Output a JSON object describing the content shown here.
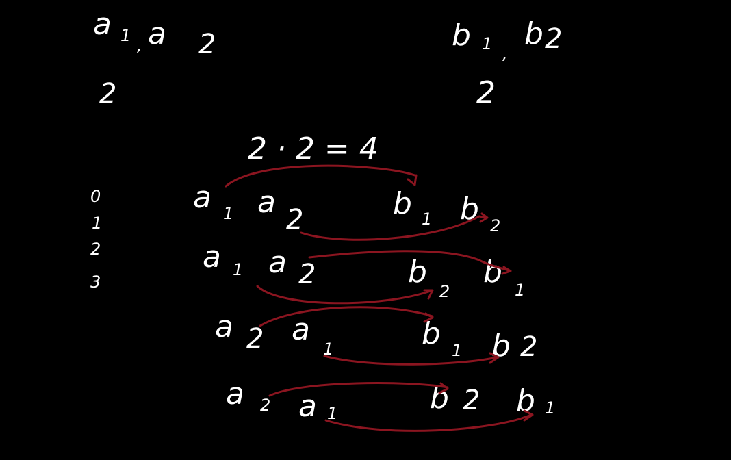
{
  "colors": {
    "background": "#000000",
    "ink": "#ffffff",
    "arrow": "#8b1520"
  },
  "top_left": {
    "a1": "a",
    "a1_sub": "1",
    "sep": ",",
    "a2": "a",
    "a2_sub": "2",
    "count": "2"
  },
  "top_right": {
    "b1": "b",
    "b1_sub": "1",
    "sep": ",",
    "b2": "b",
    "b2_sub": "2",
    "count": "2"
  },
  "equation": "2 · 2 = 4",
  "indices": [
    "0",
    "1",
    "2",
    "3"
  ],
  "rows": [
    {
      "left": [
        "a",
        "1",
        "a",
        "2"
      ],
      "right": [
        "b",
        "1",
        "b",
        "2"
      ]
    },
    {
      "left": [
        "a",
        "1",
        "a",
        "2"
      ],
      "right": [
        "b",
        "2",
        "b",
        "1"
      ]
    },
    {
      "left": [
        "a",
        "2",
        "a",
        "1"
      ],
      "right": [
        "b",
        "1",
        "b",
        "2"
      ]
    },
    {
      "left": [
        "a",
        "2",
        "a",
        "1"
      ],
      "right": [
        "b",
        "2",
        "b",
        "1"
      ]
    }
  ]
}
